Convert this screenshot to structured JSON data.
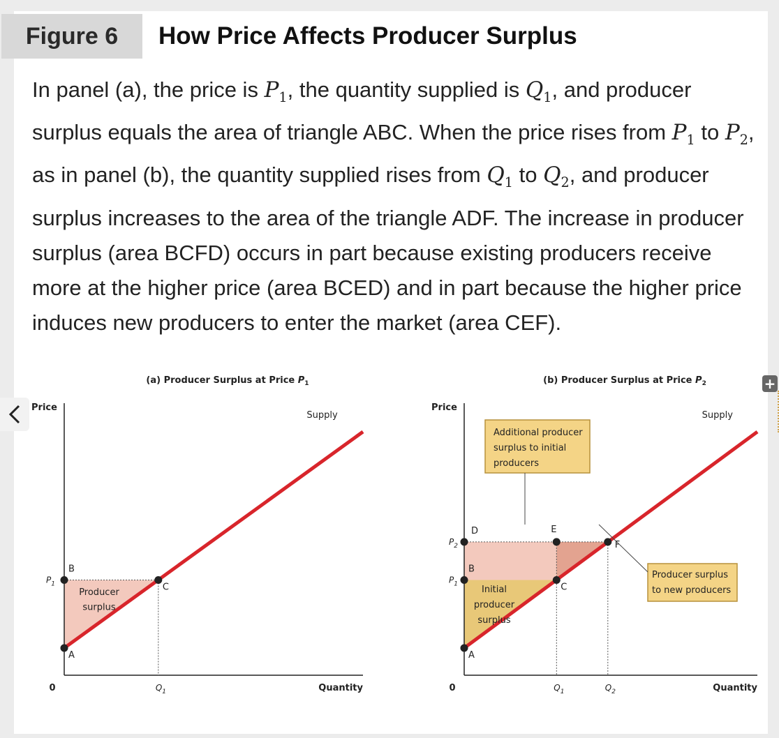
{
  "header": {
    "figure_label": "Figure 6",
    "title": "How Price Affects Producer Surplus"
  },
  "caption": {
    "t1": "In panel (a), the price is ",
    "p1": "P",
    "s1": "1",
    "t2": ", the quantity supplied is ",
    "q1": "Q",
    "s2": "1",
    "t3": ", and producer surplus equals the area of triangle ABC. When the price rises from ",
    "p2": "P",
    "s3": "1",
    "t4": " to ",
    "p3": "P",
    "s4": "2",
    "t5": ", as in panel (b), the quantity supplied rises from ",
    "q2": "Q",
    "s5": "1",
    "t6": " to ",
    "q3": "Q",
    "s6": "2",
    "t7": ", and producer surplus increases to the area of the triangle ADF. The increase in producer surplus (area BCFD) occurs in part because existing producers receive more at the higher price (area BCED) and in part because the higher price induces new producers to enter the market (area CEF)."
  },
  "ui": {
    "back_icon": "chevron-left-icon",
    "expand_icon": "plus-icon",
    "plus_glyph": "+"
  },
  "colors": {
    "supply_line": "#d8252b",
    "surplus_pink": "#f3c9bd",
    "surplus_tan": "#e8c878",
    "new_surplus": "#e3a390",
    "box_fill": "#f4d486",
    "box_border": "#b7913c"
  },
  "chart_data": [
    {
      "type": "line",
      "panel": "a",
      "title_prefix": "(a) Producer Surplus at Price ",
      "title_var": "P",
      "title_sub": "1",
      "xlabel": "Quantity",
      "ylabel": "Price",
      "origin_label": "0",
      "series": [
        {
          "name": "Supply",
          "x": [
            0,
            10
          ],
          "y": [
            1,
            8.95
          ]
        }
      ],
      "price_label": "P",
      "price_sub": "1",
      "price": 3.5,
      "quantity_label": "Q",
      "quantity_sub": "1",
      "quantity": 3.15,
      "points": [
        {
          "label": "A",
          "x": 0,
          "y": 1
        },
        {
          "label": "B",
          "x": 0,
          "y": 3.5
        },
        {
          "label": "C",
          "x": 3.15,
          "y": 3.5
        }
      ],
      "area_label_line1": "Producer",
      "area_label_line2": "surplus",
      "xlim": [
        0,
        10
      ],
      "ylim": [
        0,
        10
      ]
    },
    {
      "type": "line",
      "panel": "b",
      "title_prefix": "(b) Producer Surplus at Price ",
      "title_var": "P",
      "title_sub": "2",
      "xlabel": "Quantity",
      "ylabel": "Price",
      "origin_label": "0",
      "series": [
        {
          "name": "Supply",
          "x": [
            0,
            10
          ],
          "y": [
            1,
            8.95
          ]
        }
      ],
      "p1_label": "P",
      "p1_sub": "1",
      "p1": 3.5,
      "p2_label": "P",
      "p2_sub": "2",
      "p2": 4.9,
      "q1_label": "Q",
      "q1_sub": "1",
      "q1": 3.15,
      "q2_label": "Q",
      "q2_sub": "2",
      "q2": 4.9,
      "points": [
        {
          "label": "A",
          "x": 0,
          "y": 1
        },
        {
          "label": "B",
          "x": 0,
          "y": 3.5
        },
        {
          "label": "C",
          "x": 3.15,
          "y": 3.5
        },
        {
          "label": "D",
          "x": 0,
          "y": 4.9
        },
        {
          "label": "E",
          "x": 3.15,
          "y": 4.9
        },
        {
          "label": "F",
          "x": 4.9,
          "y": 4.9
        }
      ],
      "initial_label_lines": [
        "Initial",
        "producer",
        "surplus"
      ],
      "additional_box_lines": [
        "Additional producer",
        "surplus to initial",
        "producers"
      ],
      "new_box_lines": [
        "Producer surplus",
        "to new producers"
      ],
      "xlim": [
        0,
        10
      ],
      "ylim": [
        0,
        10
      ]
    }
  ]
}
